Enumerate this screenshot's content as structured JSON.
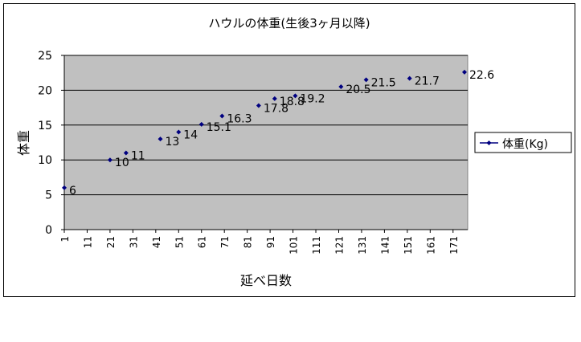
{
  "chart_data": {
    "type": "scatter",
    "title": "ハウルの体重(生後3ヶ月以降)",
    "xlabel": "延べ日数",
    "ylabel": "体重",
    "xlim": [
      1,
      176
    ],
    "ylim": [
      0,
      25
    ],
    "x_ticks": [
      "1",
      "11",
      "21",
      "31",
      "41",
      "51",
      "61",
      "71",
      "81",
      "91",
      "101",
      "111",
      "121",
      "131",
      "141",
      "151",
      "161",
      "171"
    ],
    "y_ticks": [
      "0",
      "5",
      "10",
      "15",
      "20",
      "25"
    ],
    "grid": true,
    "legend_position": "right",
    "marker_color": "#000080",
    "plot_background": "#c0c0c0",
    "series": [
      {
        "name": "体重(Kg)",
        "points": [
          {
            "x": 1,
            "y": 6,
            "label": "6"
          },
          {
            "x": 21,
            "y": 10,
            "label": "10"
          },
          {
            "x": 28,
            "y": 11,
            "label": "11"
          },
          {
            "x": 43,
            "y": 13,
            "label": "13"
          },
          {
            "x": 51,
            "y": 14,
            "label": "14"
          },
          {
            "x": 61,
            "y": 15.1,
            "label": "15.1"
          },
          {
            "x": 70,
            "y": 16.3,
            "label": "16.3"
          },
          {
            "x": 86,
            "y": 17.8,
            "label": "17.8"
          },
          {
            "x": 93,
            "y": 18.8,
            "label": "18.8"
          },
          {
            "x": 102,
            "y": 19.2,
            "label": "19.2"
          },
          {
            "x": 122,
            "y": 20.5,
            "label": "20.5"
          },
          {
            "x": 133,
            "y": 21.5,
            "label": "21.5"
          },
          {
            "x": 152,
            "y": 21.7,
            "label": "21.7"
          },
          {
            "x": 176,
            "y": 22.6,
            "label": "22.6"
          }
        ]
      }
    ]
  }
}
